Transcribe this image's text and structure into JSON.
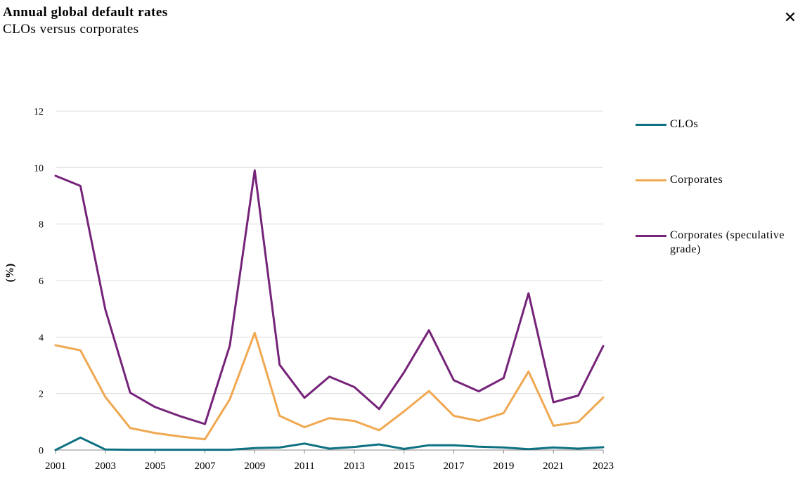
{
  "header": {
    "title": "Annual global default rates",
    "subtitle": "CLOs versus corporates",
    "close_icon": "close-icon",
    "close_glyph": "✕"
  },
  "chart_data": {
    "type": "line",
    "title": "Annual global default rates",
    "subtitle": "CLOs versus corporates",
    "xlabel": "",
    "ylabel": "(%)",
    "x": [
      2001,
      2002,
      2003,
      2004,
      2005,
      2006,
      2007,
      2008,
      2009,
      2010,
      2011,
      2012,
      2013,
      2014,
      2015,
      2016,
      2017,
      2018,
      2019,
      2020,
      2021,
      2022,
      2023
    ],
    "x_tick_labels": [
      "2001",
      "2003",
      "2005",
      "2007",
      "2009",
      "2011",
      "2013",
      "2015",
      "2017",
      "2019",
      "2021",
      "2023"
    ],
    "ylim": [
      0,
      12
    ],
    "y_ticks": [
      0,
      2,
      4,
      6,
      8,
      10,
      12
    ],
    "grid": true,
    "legend_position": "right",
    "series": [
      {
        "name": "CLOs",
        "color": "#0e7182",
        "values": [
          0.0,
          0.44,
          0.02,
          0.01,
          0.01,
          0.01,
          0.01,
          0.01,
          0.07,
          0.09,
          0.23,
          0.05,
          0.11,
          0.2,
          0.04,
          0.17,
          0.17,
          0.12,
          0.09,
          0.03,
          0.09,
          0.05,
          0.1
        ]
      },
      {
        "name": "Corporates",
        "color": "#f0a851",
        "values": [
          3.71,
          3.53,
          1.88,
          0.78,
          0.6,
          0.48,
          0.38,
          1.8,
          4.15,
          1.21,
          0.81,
          1.13,
          1.03,
          0.7,
          1.37,
          2.09,
          1.21,
          1.03,
          1.31,
          2.78,
          0.86,
          0.99,
          1.86
        ]
      },
      {
        "name": "Corporates (speculative grade)",
        "color": "#76237a",
        "values": [
          9.71,
          9.35,
          4.98,
          2.03,
          1.52,
          1.2,
          0.92,
          3.7,
          9.9,
          3.02,
          1.85,
          2.6,
          2.23,
          1.45,
          2.75,
          4.24,
          2.47,
          2.08,
          2.55,
          5.55,
          1.69,
          1.93,
          3.68
        ]
      }
    ]
  }
}
